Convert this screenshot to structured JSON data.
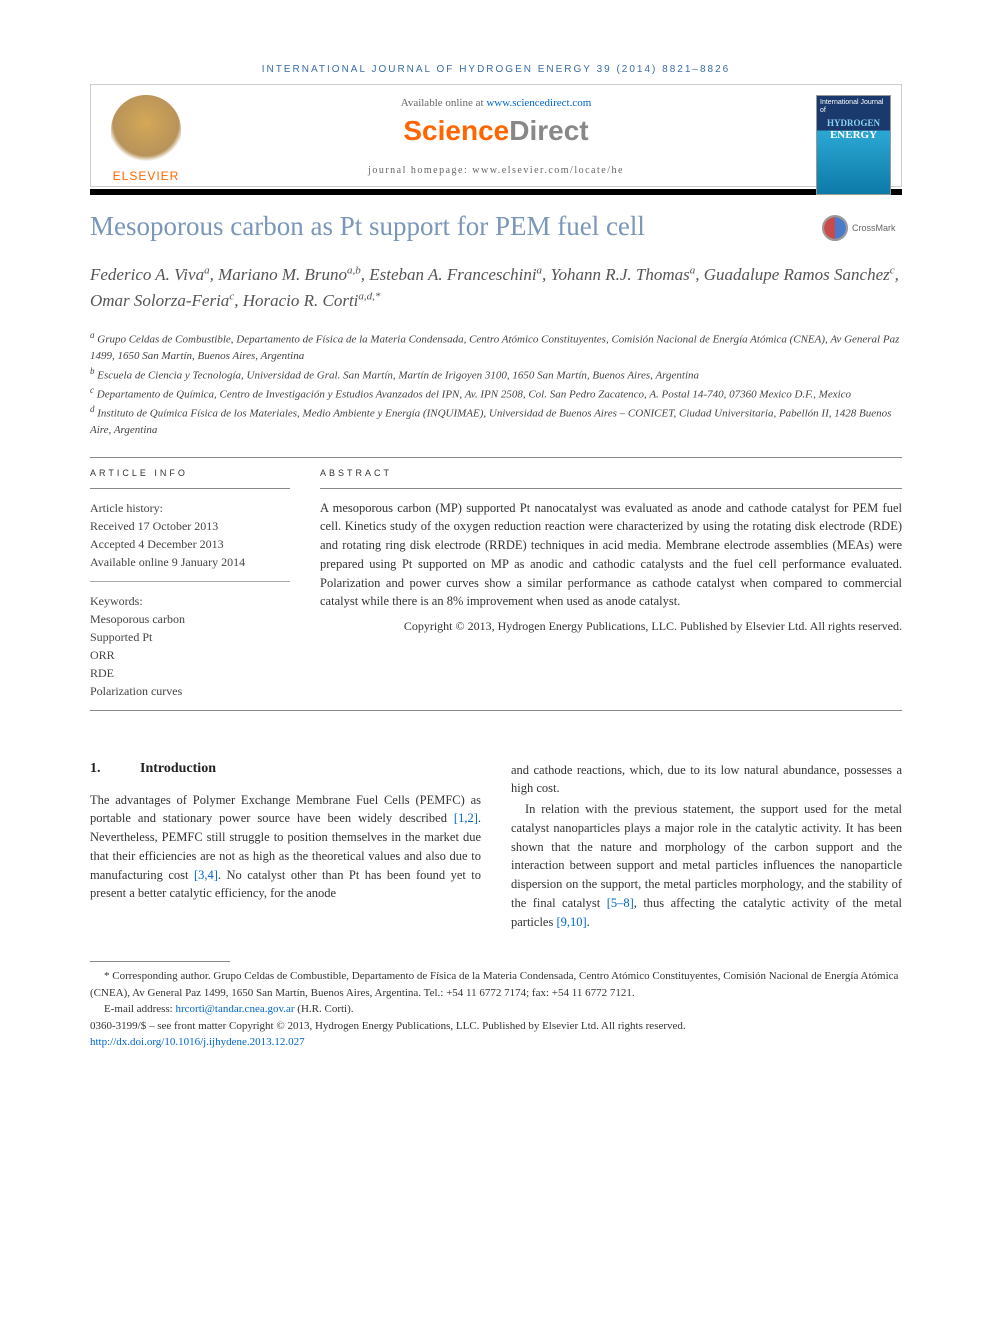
{
  "header": {
    "journal_ref": "INTERNATIONAL JOURNAL OF HYDROGEN ENERGY 39 (2014) 8821–8826",
    "available": "Available online at ",
    "sd_url": "www.sciencedirect.com",
    "sd_brand_a": "Science",
    "sd_brand_b": "Direct",
    "homepage": "journal homepage: www.elsevier.com/locate/he",
    "elsevier": "ELSEVIER",
    "cover_small": "International Journal of",
    "cover_hydrogen": "HYDROGEN",
    "cover_energy": "ENERGY",
    "crossmark": "CrossMark"
  },
  "article": {
    "title": "Mesoporous carbon as Pt support for PEM fuel cell",
    "authors_html": "Federico A. Viva<sup>a</sup>, Mariano M. Bruno<sup>a,b</sup>, Esteban A. Franceschini<sup>a</sup>, Yohann R.J. Thomas<sup>a</sup>, Guadalupe Ramos Sanchez<sup>c</sup>, Omar Solorza-Feria<sup>c</sup>, Horacio R. Corti<sup>a,d,*</sup>"
  },
  "affiliations": {
    "a": "Grupo Celdas de Combustible, Departamento de Física de la Materia Condensada, Centro Atómico Constituyentes, Comisión Nacional de Energía Atómica (CNEA), Av General Paz 1499, 1650 San Martín, Buenos Aires, Argentina",
    "b": "Escuela de Ciencia y Tecnología, Universidad de Gral. San Martín, Martín de Irigoyen 3100, 1650 San Martín, Buenos Aires, Argentina",
    "c": "Departamento de Química, Centro de Investigación y Estudios Avanzados del IPN, Av. IPN 2508, Col. San Pedro Zacatenco, A. Postal 14-740, 07360 Mexico D.F., Mexico",
    "d": "Instituto de Química Física de los Materiales, Medio Ambiente y Energía (INQUIMAE), Universidad de Buenos Aires – CONICET, Ciudad Universitaria, Pabellón II, 1428 Buenos Aire, Argentina"
  },
  "info": {
    "label": "ARTICLE INFO",
    "history_label": "Article history:",
    "received": "Received 17 October 2013",
    "accepted": "Accepted 4 December 2013",
    "online": "Available online 9 January 2014",
    "keywords_label": "Keywords:",
    "keywords": [
      "Mesoporous carbon",
      "Supported Pt",
      "ORR",
      "RDE",
      "Polarization curves"
    ]
  },
  "abstract": {
    "label": "ABSTRACT",
    "text": "A mesoporous carbon (MP) supported Pt nanocatalyst was evaluated as anode and cathode catalyst for PEM fuel cell. Kinetics study of the oxygen reduction reaction were characterized by using the rotating disk electrode (RDE) and rotating ring disk electrode (RRDE) techniques in acid media. Membrane electrode assemblies (MEAs) were prepared using Pt supported on MP as anodic and cathodic catalysts and the fuel cell performance evaluated. Polarization and power curves show a similar performance as cathode catalyst when compared to commercial catalyst while there is an 8% improvement when used as anode catalyst.",
    "copyright": "Copyright © 2013, Hydrogen Energy Publications, LLC. Published by Elsevier Ltd. All rights reserved."
  },
  "section1": {
    "num": "1.",
    "title": "Introduction",
    "col1_a": "The advantages of Polymer Exchange Membrane Fuel Cells (PEMFC) as portable and stationary power source have been widely described ",
    "col1_cite1": "[1,2]",
    "col1_b": ". Nevertheless, PEMFC still struggle to position themselves in the market due that their efficiencies are not as high as the theoretical values and also due to manufacturing cost ",
    "col1_cite2": "[3,4]",
    "col1_c": ". No catalyst other than Pt has been found yet to present a better catalytic efficiency, for the anode",
    "col2_a": "and cathode reactions, which, due to its low natural abundance, possesses a high cost.",
    "col2_b": "In relation with the previous statement, the support used for the metal catalyst nanoparticles plays a major role in the catalytic activity. It has been shown that the nature and morphology of the carbon support and the interaction between support and metal particles influences the nanoparticle dispersion on the support, the metal particles morphology, and the stability of the final catalyst ",
    "col2_cite1": "[5–8]",
    "col2_c": ", thus affecting the catalytic activity of the metal particles ",
    "col2_cite2": "[9,10]",
    "col2_d": "."
  },
  "footnotes": {
    "corr": "* Corresponding author. Grupo Celdas de Combustible, Departamento de Física de la Materia Condensada, Centro Atómico Constituyentes, Comisión Nacional de Energía Atómica (CNEA), Av General Paz 1499, 1650 San Martín, Buenos Aires, Argentina. Tel.: +54 11 6772 7174; fax: +54 11 6772 7121.",
    "email_label": "E-mail address: ",
    "email": "hrcorti@tandar.cnea.gov.ar",
    "email_who": " (H.R. Corti).",
    "issn": "0360-3199/$ – see front matter Copyright © 2013, Hydrogen Energy Publications, LLC. Published by Elsevier Ltd. All rights reserved.",
    "doi": "http://dx.doi.org/10.1016/j.ijhydene.2013.12.027"
  },
  "colors": {
    "title": "#7a96b8",
    "link": "#0066cc",
    "elsevier_orange": "#ff6600",
    "journal_ref": "#3a6ea5"
  }
}
